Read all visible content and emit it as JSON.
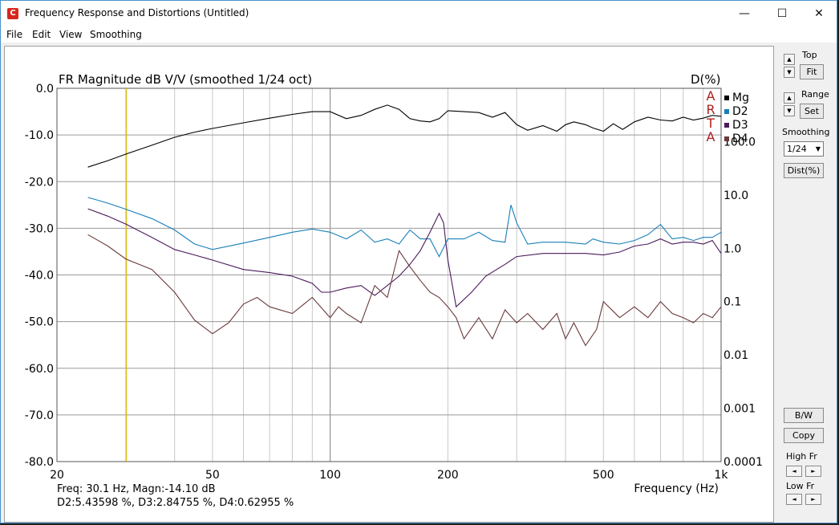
{
  "window": {
    "title": "Frequency Response and Distortions (Untitled)",
    "app_icon_glyph": "C",
    "minimize_glyph": "—",
    "maximize_glyph": "☐",
    "close_glyph": "✕"
  },
  "menu": [
    "File",
    "Edit",
    "View",
    "Smoothing"
  ],
  "panel": {
    "top_label": "Top",
    "fit_label": "Fit",
    "range_label": "Range",
    "set_label": "Set",
    "smoothing_label": "Smoothing",
    "smoothing_value": "1/24",
    "dist_label": "Dist(%)",
    "bw_label": "B/W",
    "copy_label": "Copy",
    "high_fr_label": "High Fr",
    "low_fr_label": "Low Fr",
    "up_glyph": "▲",
    "down_glyph": "▼",
    "left_glyph": "◄",
    "right_glyph": "►",
    "dropdown_glyph": "▼"
  },
  "readout": {
    "line1": "Freq: 30.1 Hz, Magn:-14.10 dB",
    "line2": "D2:5.43598 %, D3:2.84755 %, D4:0.62955 %"
  },
  "watermark": [
    "A",
    "R",
    "T",
    "A"
  ],
  "chart_data": {
    "type": "line",
    "title": "FR Magnitude dB V/V (smoothed 1/24 oct)",
    "xlabel": "Frequency (Hz)",
    "ylabel_left": "dB",
    "ylabel_right": "D(%)",
    "x_scale": "log",
    "xlim": [
      20,
      1000
    ],
    "ylim": [
      -80,
      0
    ],
    "y_ticks": [
      "0.0",
      "-10.0",
      "-20.0",
      "-30.0",
      "-40.0",
      "-50.0",
      "-60.0",
      "-70.0",
      "-80.0"
    ],
    "y_tick_values": [
      0,
      -10,
      -20,
      -30,
      -40,
      -50,
      -60,
      -70,
      -80
    ],
    "y2_ticks": [
      "100.0",
      "10.0",
      "1.0",
      "0.1",
      "0.01",
      "0.001",
      "0.0001"
    ],
    "y2_tick_values": [
      100,
      10,
      1,
      0.1,
      0.01,
      0.001,
      0.0001
    ],
    "y2_scale": "log",
    "y2_lim": [
      0.0001,
      1000
    ],
    "x_ticks": [
      "20",
      "50",
      "100",
      "200",
      "500",
      "1k"
    ],
    "x_tick_values": [
      20,
      50,
      100,
      200,
      500,
      1000
    ],
    "grid": true,
    "cursor_hz": 30.1,
    "cursor_color": "#d8c020",
    "legend_position": "top-right",
    "series": [
      {
        "name": "Mg",
        "color": "#000000",
        "axis": "left",
        "x": [
          24,
          27,
          30,
          35,
          40,
          45,
          50,
          60,
          70,
          80,
          90,
          100,
          110,
          120,
          130,
          140,
          150,
          160,
          170,
          180,
          190,
          200,
          220,
          240,
          260,
          280,
          300,
          320,
          350,
          380,
          400,
          420,
          450,
          470,
          500,
          530,
          560,
          600,
          650,
          700,
          750,
          800,
          850,
          900,
          950,
          1000
        ],
        "y": [
          -16.9,
          -15.5,
          -14.1,
          -12.2,
          -10.5,
          -9.4,
          -8.6,
          -7.4,
          -6.4,
          -5.6,
          -5.0,
          -5.0,
          -6.5,
          -5.8,
          -4.5,
          -3.6,
          -4.5,
          -6.5,
          -7.0,
          -7.2,
          -6.5,
          -4.8,
          -5.0,
          -5.2,
          -6.2,
          -5.2,
          -7.8,
          -9.0,
          -8.0,
          -9.2,
          -7.8,
          -7.2,
          -7.8,
          -8.5,
          -9.2,
          -7.6,
          -8.8,
          -7.2,
          -6.2,
          -6.8,
          -7.0,
          -6.2,
          -6.8,
          -6.4,
          -5.8,
          -6.0
        ]
      },
      {
        "name": "D2",
        "color": "#1a7fb8",
        "axis": "right",
        "x": [
          24,
          27,
          30,
          35,
          40,
          45,
          50,
          60,
          70,
          80,
          90,
          100,
          110,
          120,
          130,
          140,
          150,
          160,
          170,
          180,
          190,
          200,
          220,
          240,
          260,
          280,
          290,
          300,
          320,
          350,
          400,
          450,
          470,
          500,
          550,
          600,
          650,
          700,
          750,
          800,
          850,
          900,
          950,
          1000
        ],
        "y": [
          9.0,
          7.0,
          5.4,
          3.6,
          2.2,
          1.2,
          0.95,
          1.25,
          1.6,
          2.0,
          2.3,
          2.0,
          1.5,
          2.2,
          1.3,
          1.5,
          1.2,
          2.2,
          1.5,
          1.5,
          0.7,
          1.5,
          1.5,
          2.0,
          1.4,
          1.3,
          6.5,
          3.0,
          1.2,
          1.3,
          1.3,
          1.2,
          1.5,
          1.3,
          1.2,
          1.4,
          1.8,
          2.8,
          1.5,
          1.6,
          1.4,
          1.6,
          1.6,
          2.0
        ]
      },
      {
        "name": "D3",
        "color": "#4b1a5c",
        "axis": "right",
        "x": [
          24,
          27,
          30,
          35,
          40,
          45,
          50,
          60,
          70,
          80,
          90,
          95,
          100,
          110,
          120,
          130,
          140,
          150,
          160,
          170,
          180,
          190,
          195,
          200,
          210,
          230,
          250,
          280,
          300,
          350,
          400,
          450,
          500,
          550,
          600,
          650,
          700,
          750,
          800,
          850,
          900,
          950,
          1000
        ],
        "y": [
          5.5,
          4.0,
          2.85,
          1.6,
          0.95,
          0.75,
          0.6,
          0.4,
          0.35,
          0.3,
          0.22,
          0.15,
          0.15,
          0.18,
          0.2,
          0.13,
          0.2,
          0.3,
          0.5,
          0.9,
          2.0,
          4.5,
          3.0,
          0.6,
          0.08,
          0.15,
          0.3,
          0.5,
          0.7,
          0.8,
          0.8,
          0.8,
          0.75,
          0.85,
          1.1,
          1.2,
          1.5,
          1.2,
          1.3,
          1.3,
          1.2,
          1.4,
          0.8
        ]
      },
      {
        "name": "D4",
        "color": "#6b3a3a",
        "axis": "right",
        "x": [
          24,
          27,
          30,
          35,
          40,
          45,
          50,
          55,
          60,
          65,
          70,
          80,
          90,
          100,
          105,
          110,
          120,
          130,
          140,
          150,
          160,
          170,
          180,
          190,
          200,
          210,
          220,
          240,
          260,
          280,
          300,
          320,
          350,
          380,
          400,
          420,
          450,
          480,
          500,
          550,
          600,
          650,
          700,
          750,
          800,
          850,
          900,
          950,
          1000
        ],
        "y": [
          1.8,
          1.1,
          0.63,
          0.4,
          0.15,
          0.045,
          0.025,
          0.04,
          0.09,
          0.12,
          0.08,
          0.06,
          0.12,
          0.05,
          0.08,
          0.06,
          0.04,
          0.2,
          0.12,
          0.9,
          0.45,
          0.25,
          0.15,
          0.12,
          0.08,
          0.05,
          0.02,
          0.05,
          0.02,
          0.07,
          0.04,
          0.06,
          0.03,
          0.06,
          0.02,
          0.04,
          0.015,
          0.03,
          0.1,
          0.05,
          0.08,
          0.05,
          0.1,
          0.06,
          0.05,
          0.04,
          0.06,
          0.05,
          0.08
        ]
      }
    ]
  }
}
